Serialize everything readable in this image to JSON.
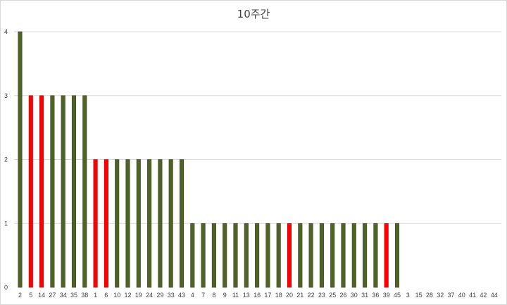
{
  "chart_data": {
    "type": "bar",
    "title": "10주간",
    "xlabel": "",
    "ylabel": "",
    "ylim": [
      0,
      4
    ],
    "yticks": [
      0,
      1,
      2,
      3,
      4
    ],
    "grid": true,
    "legend": "none",
    "categories": [
      "2",
      "5",
      "14",
      "27",
      "34",
      "35",
      "38",
      "1",
      "6",
      "10",
      "12",
      "19",
      "24",
      "29",
      "33",
      "43",
      "4",
      "7",
      "8",
      "9",
      "11",
      "13",
      "16",
      "17",
      "18",
      "20",
      "21",
      "22",
      "23",
      "25",
      "26",
      "30",
      "31",
      "36",
      "39",
      "45",
      "3",
      "15",
      "28",
      "32",
      "37",
      "40",
      "41",
      "42",
      "44"
    ],
    "values": [
      4,
      3,
      3,
      3,
      3,
      3,
      3,
      2,
      2,
      2,
      2,
      2,
      2,
      2,
      2,
      2,
      1,
      1,
      1,
      1,
      1,
      1,
      1,
      1,
      1,
      1,
      1,
      1,
      1,
      1,
      1,
      1,
      1,
      1,
      1,
      1,
      0,
      0,
      0,
      0,
      0,
      0,
      0,
      0,
      0
    ],
    "highlighted": [
      "5",
      "14",
      "1",
      "6",
      "20",
      "39"
    ],
    "colors": {
      "bar": "#4f6228",
      "bar_border": "#3b4a1e",
      "highlight": "#ff0000",
      "highlight_border": "#c00000",
      "grid": "#d9d9d9",
      "text": "#404040"
    }
  }
}
